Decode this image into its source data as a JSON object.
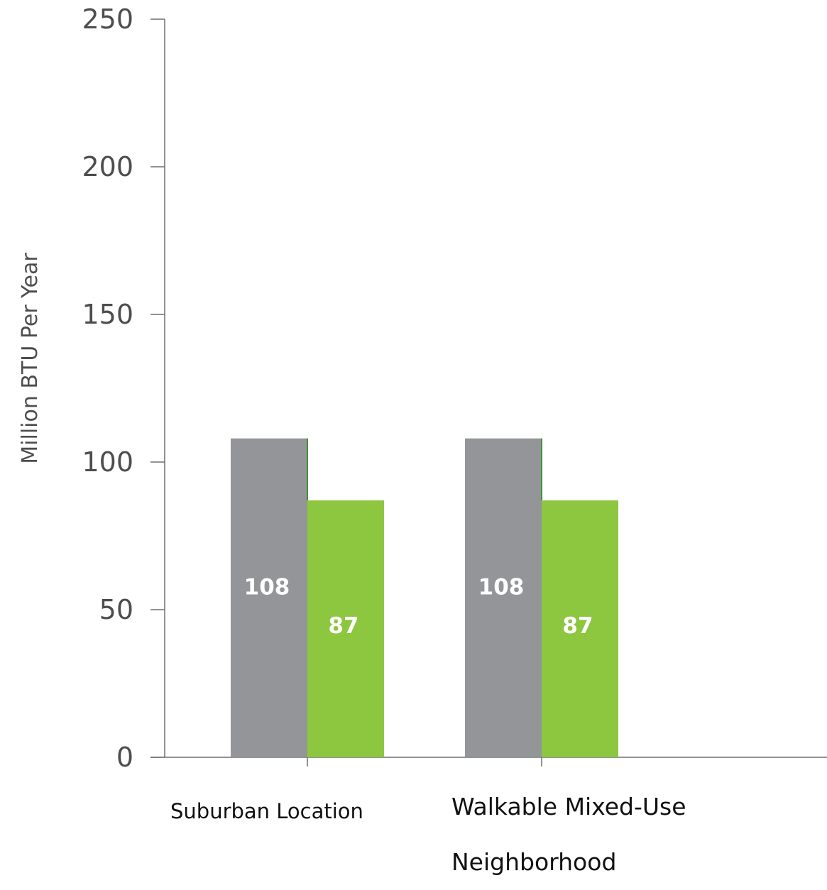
{
  "chart_data": {
    "type": "bar",
    "title": "",
    "xlabel": "",
    "ylabel": "Million BTU Per Year",
    "ylim": [
      0,
      250
    ],
    "yticks": [
      0,
      50,
      100,
      150,
      200,
      250
    ],
    "grid": false,
    "legend": "none",
    "categories": [
      "Suburban Location",
      "Walkable Mixed-Use Neighborhood"
    ],
    "series": [
      {
        "values": [
          108,
          108
        ],
        "color": "#939598",
        "label_color": "#ffffff"
      },
      {
        "values": [
          87,
          87
        ],
        "color": "#8dc63f",
        "label_color": "#ffffff"
      }
    ],
    "data_labels": [
      [
        "108",
        "108"
      ],
      [
        "87",
        "87"
      ]
    ],
    "axis_color": "#6d6e71"
  }
}
